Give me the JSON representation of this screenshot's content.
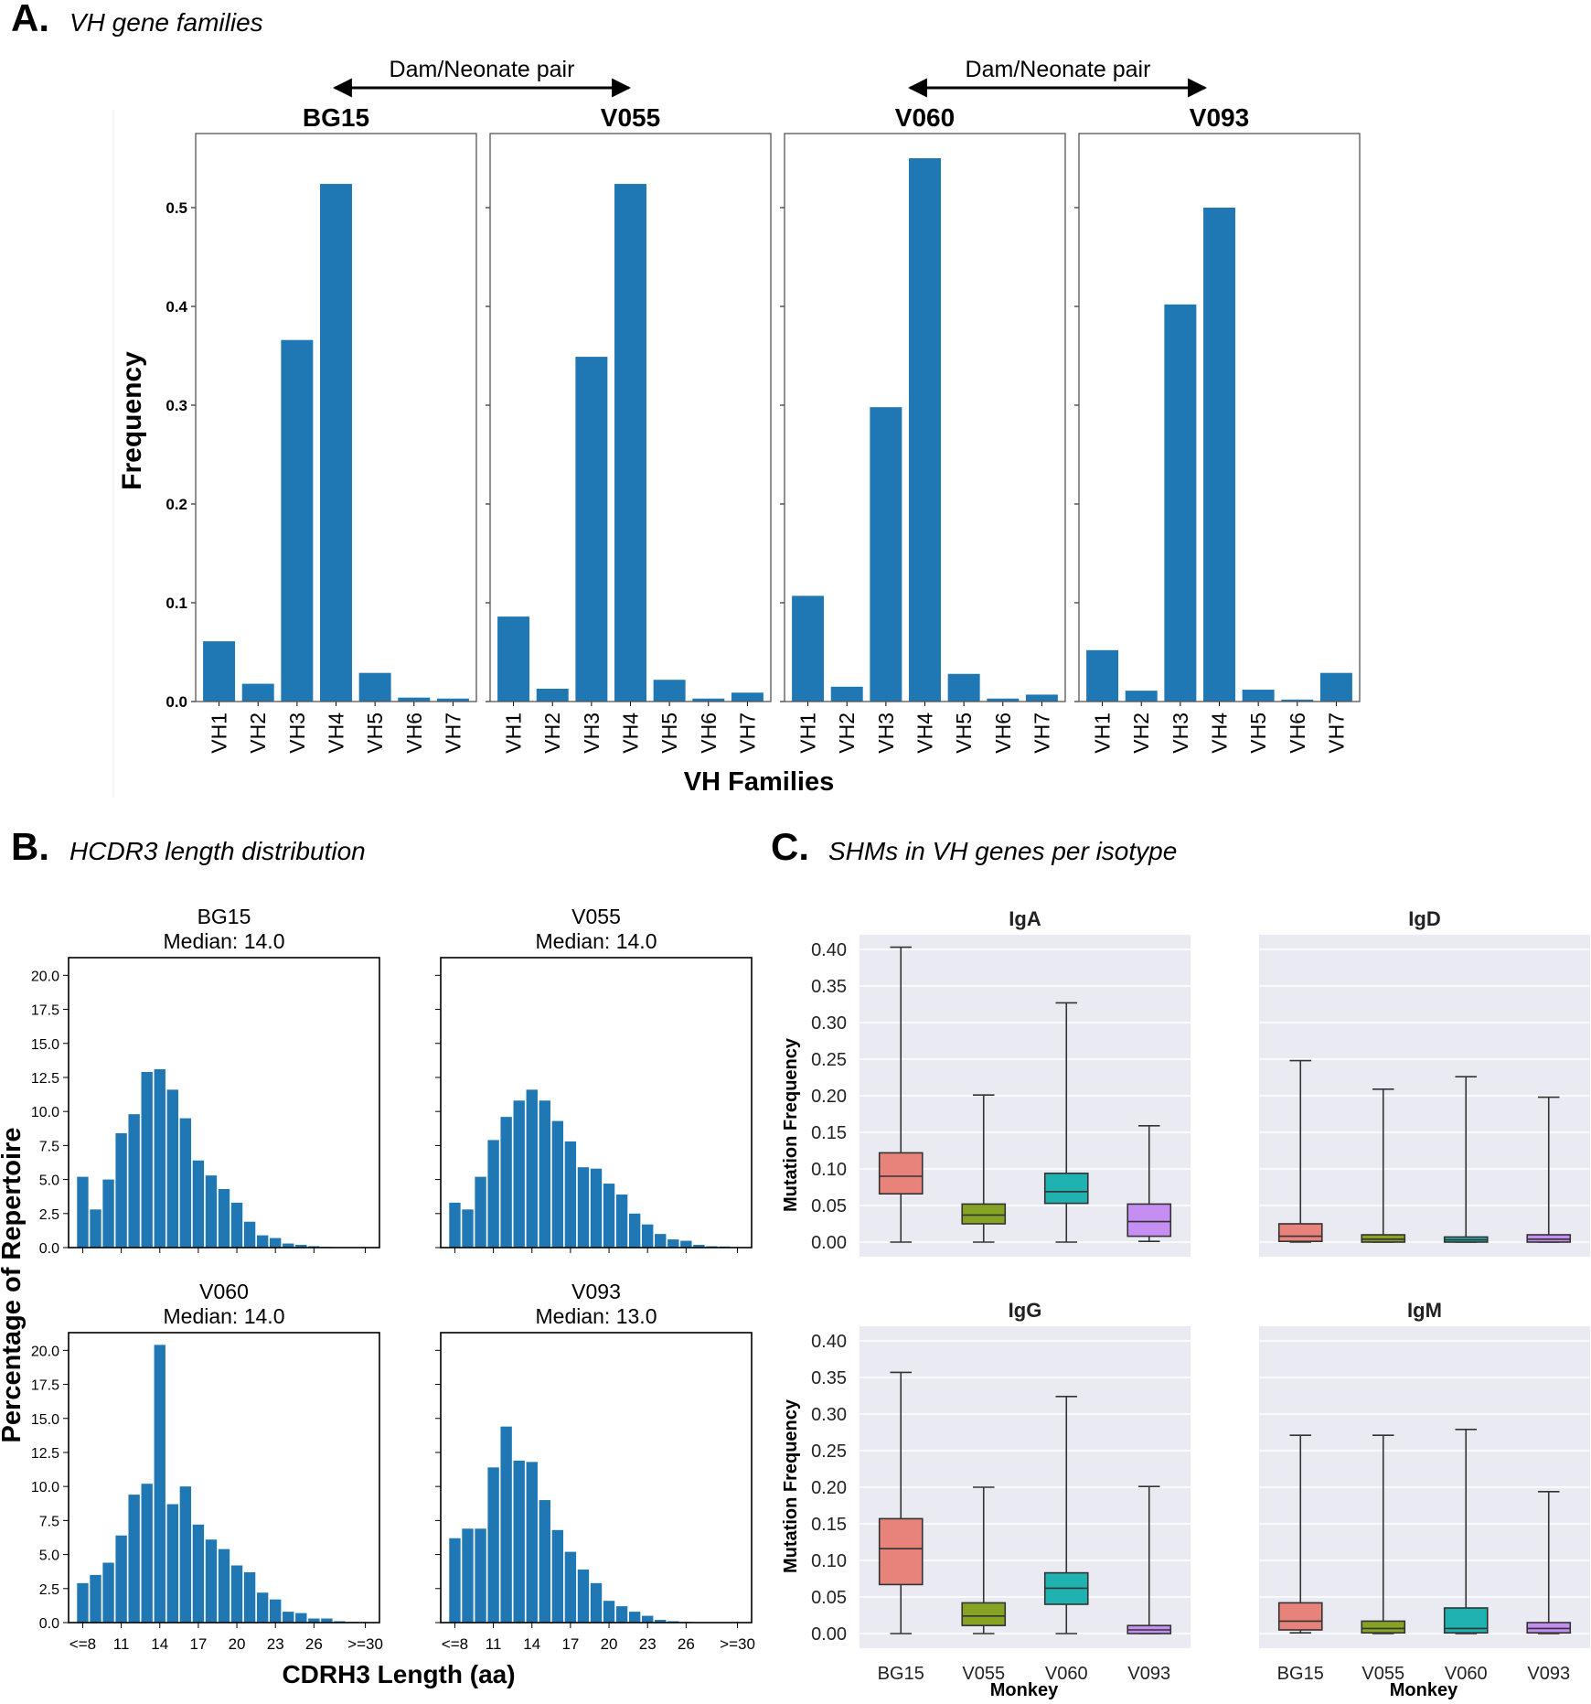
{
  "figure": {
    "panel_a": {
      "letter": "A.",
      "title": "VH gene families",
      "pair_label": "Dam/Neonate pair",
      "ylabel": "Frequency",
      "xlabel": "VH Families"
    },
    "panel_b": {
      "letter": "B.",
      "title": "HCDR3 length distribution",
      "ylabel": "Percentage of Repertoire",
      "xlabel": "CDRH3 Length (aa)"
    },
    "panel_c": {
      "letter": "C.",
      "title": "SHMs in VH genes per isotype",
      "ylabel": "Mutation Frequency",
      "xlabel": "Monkey"
    }
  },
  "colors": {
    "bar": "#1f77b4",
    "box": [
      "#e8837b",
      "#86a323",
      "#20b2b0",
      "#c58ef2"
    ],
    "seaborn_bg": "#eaeaf2"
  },
  "chart_data": [
    {
      "type": "bar",
      "id": "vh_families",
      "xlabel": "VH Families",
      "ylabel": "Frequency",
      "ylim": [
        0,
        0.575
      ],
      "yticks": [
        0.0,
        0.1,
        0.2,
        0.3,
        0.4,
        0.5
      ],
      "categories": [
        "VH1",
        "VH2",
        "VH3",
        "VH4",
        "VH5",
        "VH6",
        "VH7"
      ],
      "series": [
        {
          "name": "BG15",
          "values": [
            0.061,
            0.018,
            0.366,
            0.524,
            0.029,
            0.004,
            0.003
          ]
        },
        {
          "name": "V055",
          "values": [
            0.086,
            0.013,
            0.349,
            0.524,
            0.022,
            0.003,
            0.009
          ]
        },
        {
          "name": "V060",
          "values": [
            0.107,
            0.015,
            0.298,
            0.55,
            0.028,
            0.003,
            0.007
          ]
        },
        {
          "name": "V093",
          "values": [
            0.052,
            0.011,
            0.402,
            0.5,
            0.012,
            0.002,
            0.029
          ]
        }
      ]
    },
    {
      "type": "bar",
      "id": "cdrh3_length",
      "xlabel": "CDRH3 Length (aa)",
      "ylabel": "Percentage of Repertoire",
      "ylim": [
        0,
        21.3
      ],
      "yticks": [
        "0.0",
        "2.5",
        "5.0",
        "7.5",
        "10.0",
        "12.5",
        "15.0",
        "17.5",
        "20.0"
      ],
      "categories": [
        "<=8",
        "9",
        "10",
        "11",
        "12",
        "13",
        "14",
        "15",
        "16",
        "17",
        "18",
        "19",
        "20",
        "21",
        "22",
        "23",
        "24",
        "25",
        "26",
        "27",
        "28",
        "29",
        ">=30"
      ],
      "xtick_labels": [
        "<=8",
        "11",
        "14",
        "17",
        "20",
        "23",
        "26",
        ">=30"
      ],
      "series": [
        {
          "name": "BG15",
          "median": "Median: 14.0",
          "values": [
            5.2,
            2.8,
            5.0,
            8.4,
            9.8,
            12.9,
            13.1,
            11.6,
            9.5,
            6.4,
            5.3,
            4.3,
            3.3,
            1.9,
            0.9,
            0.7,
            0.3,
            0.2,
            0.1,
            0.05,
            0.03,
            0.02,
            0.01
          ]
        },
        {
          "name": "V055",
          "median": "Median: 14.0",
          "values": [
            3.3,
            2.8,
            5.2,
            7.9,
            9.6,
            10.8,
            11.6,
            10.8,
            9.3,
            7.8,
            5.9,
            5.8,
            4.7,
            3.9,
            2.5,
            1.7,
            1.0,
            0.6,
            0.5,
            0.2,
            0.1,
            0.08,
            0.03
          ]
        },
        {
          "name": "V060",
          "median": "Median: 14.0",
          "values": [
            2.9,
            3.5,
            4.4,
            6.4,
            9.4,
            10.2,
            20.4,
            8.7,
            10.0,
            7.2,
            6.1,
            5.4,
            4.2,
            3.7,
            2.2,
            1.7,
            0.8,
            0.7,
            0.3,
            0.3,
            0.1,
            0.05,
            0.03
          ]
        },
        {
          "name": "V093",
          "median": "Median: 13.0",
          "values": [
            6.2,
            6.9,
            6.9,
            11.4,
            14.4,
            11.9,
            11.8,
            9.0,
            6.8,
            5.2,
            3.9,
            2.9,
            1.6,
            1.2,
            0.8,
            0.5,
            0.2,
            0.1,
            0.05,
            0.03,
            0.02,
            0.01,
            0.01
          ]
        }
      ]
    },
    {
      "type": "box",
      "id": "shm_isotype",
      "xlabel": "Monkey",
      "ylabel": "Mutation Frequency",
      "ylim": [
        -0.02,
        0.42
      ],
      "yticks": [
        "0.00",
        "0.05",
        "0.10",
        "0.15",
        "0.20",
        "0.25",
        "0.30",
        "0.35",
        "0.40"
      ],
      "categories": [
        "BG15",
        "V055",
        "V060",
        "V093"
      ],
      "panels": [
        {
          "name": "IgA",
          "boxes": [
            {
              "min": 0.0,
              "q1": 0.066,
              "median": 0.09,
              "q3": 0.122,
              "max": 0.403
            },
            {
              "min": 0.0,
              "q1": 0.025,
              "median": 0.037,
              "q3": 0.052,
              "max": 0.201
            },
            {
              "min": 0.0,
              "q1": 0.053,
              "median": 0.069,
              "q3": 0.094,
              "max": 0.327
            },
            {
              "min": 0.001,
              "q1": 0.008,
              "median": 0.028,
              "q3": 0.052,
              "max": 0.159
            }
          ]
        },
        {
          "name": "IgD",
          "boxes": [
            {
              "min": 0.0,
              "q1": 0.001,
              "median": 0.008,
              "q3": 0.025,
              "max": 0.248
            },
            {
              "min": 0.0,
              "q1": 0.0,
              "median": 0.004,
              "q3": 0.01,
              "max": 0.209
            },
            {
              "min": 0.0,
              "q1": 0.0,
              "median": 0.003,
              "q3": 0.007,
              "max": 0.226
            },
            {
              "min": 0.0,
              "q1": 0.0,
              "median": 0.004,
              "q3": 0.01,
              "max": 0.198
            }
          ]
        },
        {
          "name": "IgG",
          "boxes": [
            {
              "min": 0.0,
              "q1": 0.067,
              "median": 0.116,
              "q3": 0.157,
              "max": 0.357
            },
            {
              "min": 0.0,
              "q1": 0.011,
              "median": 0.024,
              "q3": 0.042,
              "max": 0.2
            },
            {
              "min": 0.0,
              "q1": 0.04,
              "median": 0.062,
              "q3": 0.083,
              "max": 0.324
            },
            {
              "min": 0.0,
              "q1": 0.0,
              "median": 0.005,
              "q3": 0.011,
              "max": 0.201
            }
          ]
        },
        {
          "name": "IgM",
          "boxes": [
            {
              "min": 0.001,
              "q1": 0.005,
              "median": 0.017,
              "q3": 0.042,
              "max": 0.271
            },
            {
              "min": 0.0,
              "q1": 0.001,
              "median": 0.007,
              "q3": 0.017,
              "max": 0.271
            },
            {
              "min": 0.0,
              "q1": 0.001,
              "median": 0.007,
              "q3": 0.035,
              "max": 0.279
            },
            {
              "min": 0.0,
              "q1": 0.001,
              "median": 0.007,
              "q3": 0.015,
              "max": 0.194
            }
          ]
        }
      ]
    }
  ]
}
